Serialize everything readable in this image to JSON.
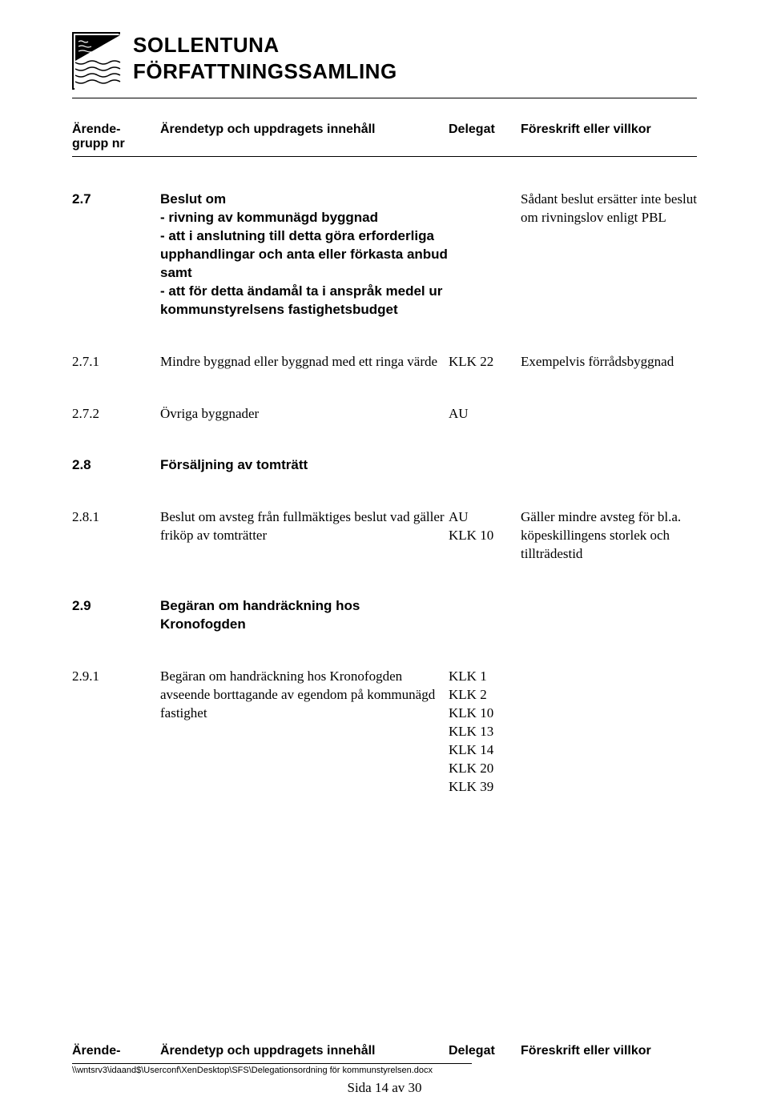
{
  "header": {
    "title_line1": "SOLLENTUNA",
    "title_line2": "FÖRFATTNINGSSAMLING"
  },
  "columns": {
    "num": "Ärende-\ngrupp nr",
    "desc": "Ärendetyp och uppdragets innehåll",
    "del": "Delegat",
    "cond": "Föreskrift eller villkor"
  },
  "rows": [
    {
      "num": "2.7",
      "desc": "Beslut om\n- rivning av kommunägd byggnad\n- att i anslutning till detta göra erforderliga upphandlingar och anta eller förkasta anbud samt\n- att för detta ändamål ta i anspråk medel ur kommunstyrelsens fastighetsbudget",
      "del": "",
      "cond": "Sådant beslut ersätter inte beslut om rivningslov enligt PBL",
      "boldNum": true,
      "boldDesc": true
    },
    {
      "num": "2.7.1",
      "desc": "Mindre byggnad eller byggnad med ett ringa värde",
      "del": "KLK 22",
      "cond": "Exempelvis förrådsbyggnad"
    },
    {
      "num": "2.7.2",
      "desc": "Övriga byggnader",
      "del": "AU",
      "cond": ""
    },
    {
      "num": "2.8",
      "desc": "Försäljning av tomträtt",
      "del": "",
      "cond": "",
      "boldNum": true,
      "boldDesc": true
    },
    {
      "num": "2.8.1",
      "desc": "Beslut om avsteg från fullmäktiges beslut vad gäller friköp av tomträtter",
      "del": "AU\nKLK 10",
      "cond": "Gäller mindre avsteg för bl.a. köpeskillingens storlek och tillträdestid"
    },
    {
      "num": "2.9",
      "desc": "Begäran om handräckning hos Kronofogden",
      "del": "",
      "cond": "",
      "boldNum": true,
      "boldDesc": true
    },
    {
      "num": "2.9.1",
      "desc": "Begäran om handräckning hos Kronofogden avseende borttagande av egendom på kommunägd fastighet",
      "del": "KLK 1\nKLK 2\nKLK 10\nKLK 13\nKLK 14\nKLK 20\nKLK 39",
      "cond": ""
    }
  ],
  "footer": {
    "num": "Ärende-",
    "desc": "Ärendetyp och uppdragets innehåll",
    "del": "Delegat",
    "cond": "Föreskrift eller villkor",
    "path": "\\\\wntsrv3\\idaand$\\Userconf\\XenDesktop\\SFS\\Delegationsordning för kommunstyrelsen.docx",
    "page": "Sida 14 av 30"
  }
}
